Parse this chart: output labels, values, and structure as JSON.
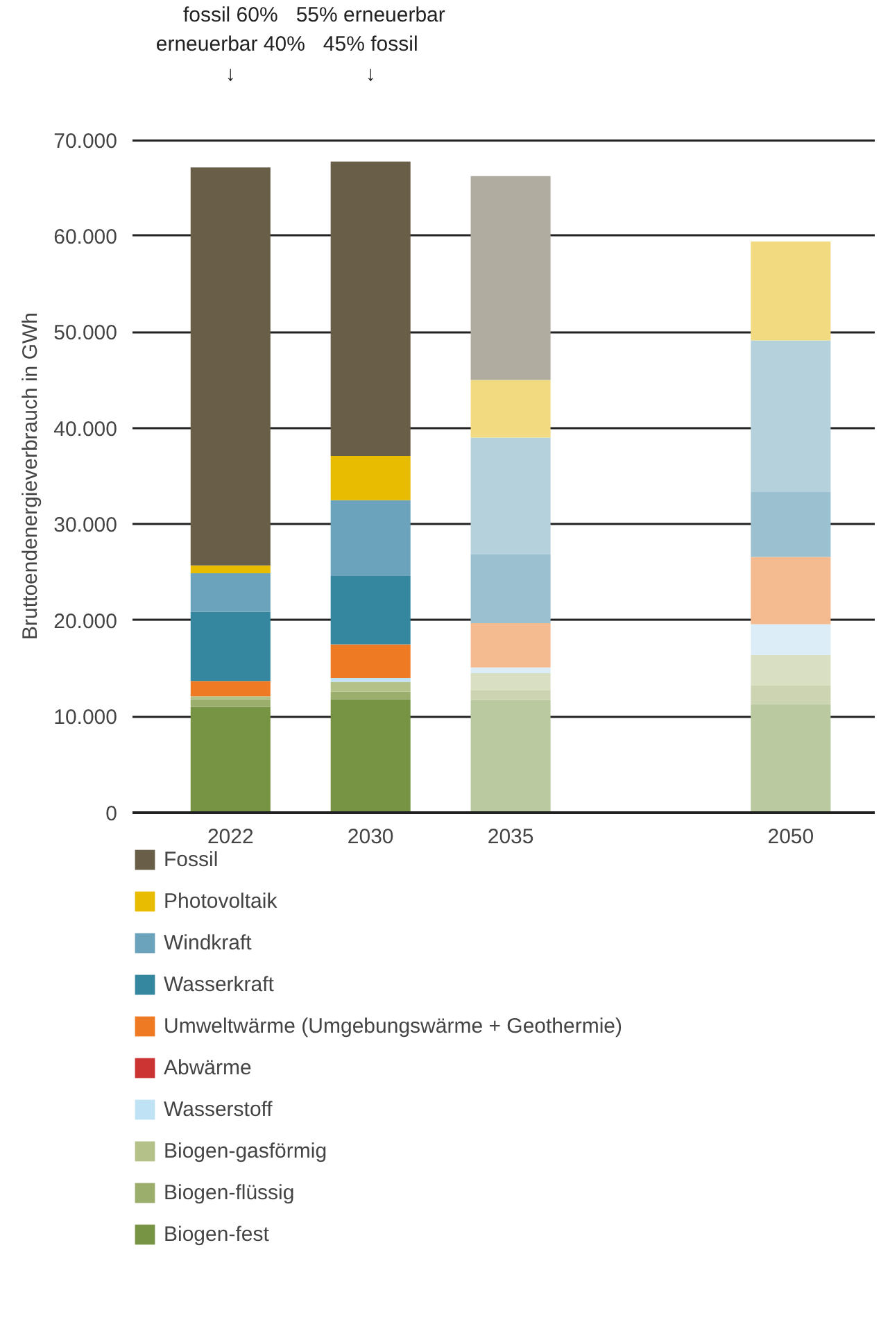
{
  "chart_data": {
    "type": "bar",
    "stacked": true,
    "ylabel": "Bruttoendenergieverbrauch in GWh",
    "categories": [
      "2022",
      "2030",
      "2035",
      null,
      "2050"
    ],
    "series": [
      {
        "name": "Biogen-fest",
        "color": "#769443",
        "colors": [
          "#769443",
          "#769443",
          "#bac99f",
          null,
          "#bac99f"
        ],
        "values": [
          11000,
          11800,
          11700,
          null,
          11300
        ]
      },
      {
        "name": "Biogen-flüssig",
        "color": "#9cae6b",
        "colors": [
          "#9cae6b",
          "#9cae6b",
          "#ccd4b1",
          null,
          "#ccd4b1"
        ],
        "values": [
          800,
          800,
          1000,
          null,
          1900
        ]
      },
      {
        "name": "Biogen-gasförmig",
        "color": "#b4c28a",
        "colors": [
          "#b4c28a",
          "#b4c28a",
          "#d9dfc3",
          null,
          "#d9dfc3"
        ],
        "values": [
          300,
          1000,
          1800,
          null,
          3200
        ]
      },
      {
        "name": "Wasserstoff",
        "color": "#bfe3f5",
        "colors": [
          "#bfe3f5",
          "#bfe3f5",
          "#dcedf8",
          null,
          "#dcedf8"
        ],
        "values": [
          0,
          400,
          600,
          null,
          3200
        ]
      },
      {
        "name": "Abwärme",
        "color": "#cc3333",
        "colors": [
          "#cc3333",
          "#cc3333",
          "#e59999",
          null,
          "#e59999"
        ],
        "values": [
          0,
          0,
          0,
          null,
          0
        ]
      },
      {
        "name": "Umweltwärme (Umgebungswärme + Geothermie)",
        "color": "#ee7a23",
        "colors": [
          "#ee7a23",
          "#ee7a23",
          "#f4bb90",
          null,
          "#f4bb90"
        ],
        "values": [
          1600,
          3500,
          4600,
          null,
          7000
        ]
      },
      {
        "name": "Wasserkraft",
        "color": "#35869f",
        "colors": [
          "#35869f",
          "#35869f",
          "#9bc1d0",
          null,
          "#9bc1d0"
        ],
        "values": [
          7200,
          7100,
          7200,
          null,
          6800
        ]
      },
      {
        "name": "Windkraft",
        "color": "#6aa3bb",
        "colors": [
          "#6aa3bb",
          "#6aa3bb",
          "#b5d1dc",
          null,
          "#b5d1dc"
        ],
        "values": [
          4000,
          7900,
          12100,
          null,
          15700
        ]
      },
      {
        "name": "Photovoltaik",
        "color": "#e8bc00",
        "colors": [
          "#e8bc00",
          "#e8bc00",
          "#f2da80",
          null,
          "#f2da80"
        ],
        "values": [
          800,
          4600,
          6000,
          null,
          10300
        ]
      },
      {
        "name": "Fossil",
        "color": "#695e48",
        "colors": [
          "#695e48",
          "#695e48",
          "#b0aca0",
          null,
          "#b0aca0"
        ],
        "values": [
          41400,
          30600,
          21200,
          null,
          0
        ]
      }
    ],
    "ylim": [
      0,
      70000
    ],
    "yticks": [
      {
        "value": 0,
        "label": "0"
      },
      {
        "value": 10000,
        "label": "10.000"
      },
      {
        "value": 20000,
        "label": "20.000"
      },
      {
        "value": 30000,
        "label": "30.000"
      },
      {
        "value": 40000,
        "label": "40.000"
      },
      {
        "value": 50000,
        "label": "50.000"
      },
      {
        "value": 60000,
        "label": "60.000"
      },
      {
        "value": 70000,
        "label": "70.000"
      }
    ],
    "grid": "y",
    "legend": "bottom",
    "annotations": [
      "fossil 60%\nerneuerbar 40%\n↓",
      "55% erneuerbar\n45% fossil\n↓"
    ]
  }
}
